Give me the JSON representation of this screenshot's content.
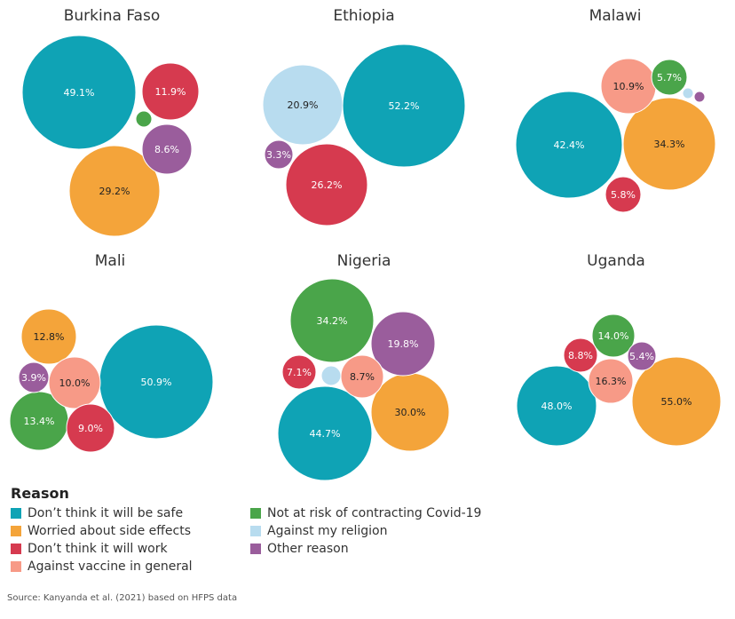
{
  "colors": {
    "safe": "#0fa3b5",
    "side": "#f4a43a",
    "work": "#d63a4f",
    "general": "#f79a87",
    "risk": "#4aa54a",
    "religion": "#b8dcef",
    "other": "#9a5d9c"
  },
  "legend": {
    "title": "Reason",
    "items": [
      {
        "key": "safe",
        "label": "Don’t think it will be safe"
      },
      {
        "key": "risk",
        "label": "Not at risk of contracting Covid-19"
      },
      {
        "key": "side",
        "label": "Worried about side effects"
      },
      {
        "key": "religion",
        "label": "Against my religion"
      },
      {
        "key": "work",
        "label": "Don’t think it will work"
      },
      {
        "key": "other",
        "label": "Other reason"
      },
      {
        "key": "general",
        "label": "Against vaccine in general"
      }
    ]
  },
  "source": "Source: Kanyanda et al. (2021) based on HFPS data",
  "chart_data": [
    {
      "type": "packed-bubble",
      "title": "Burkina Faso",
      "series": [
        {
          "key": "safe",
          "value": 49.1,
          "label": "49.1%"
        },
        {
          "key": "side",
          "value": 29.2,
          "label": "29.2%"
        },
        {
          "key": "work",
          "value": 11.9,
          "label": "11.9%"
        },
        {
          "key": "other",
          "value": 8.6,
          "label": "8.6%"
        },
        {
          "key": "risk",
          "value": 1.2,
          "label": ""
        }
      ]
    },
    {
      "type": "packed-bubble",
      "title": "Ethiopia",
      "series": [
        {
          "key": "safe",
          "value": 52.2,
          "label": "52.2%"
        },
        {
          "key": "work",
          "value": 26.2,
          "label": "26.2%"
        },
        {
          "key": "religion",
          "value": 20.9,
          "label": "20.9%"
        },
        {
          "key": "other",
          "value": 3.3,
          "label": "3.3%"
        }
      ]
    },
    {
      "type": "packed-bubble",
      "title": "Malawi",
      "series": [
        {
          "key": "safe",
          "value": 42.4,
          "label": "42.4%"
        },
        {
          "key": "side",
          "value": 34.3,
          "label": "34.3%"
        },
        {
          "key": "general",
          "value": 10.9,
          "label": "10.9%"
        },
        {
          "key": "risk",
          "value": 5.7,
          "label": "5.7%"
        },
        {
          "key": "work",
          "value": 5.8,
          "label": "5.8%"
        },
        {
          "key": "religion",
          "value": 0.5,
          "label": ""
        },
        {
          "key": "other",
          "value": 0.6,
          "label": ""
        }
      ]
    },
    {
      "type": "packed-bubble",
      "title": "Mali",
      "series": [
        {
          "key": "safe",
          "value": 50.9,
          "label": "50.9%"
        },
        {
          "key": "risk",
          "value": 13.4,
          "label": "13.4%"
        },
        {
          "key": "side",
          "value": 12.8,
          "label": "12.8%"
        },
        {
          "key": "general",
          "value": 10.0,
          "label": "10.0%"
        },
        {
          "key": "work",
          "value": 9.0,
          "label": "9.0%"
        },
        {
          "key": "other",
          "value": 3.9,
          "label": "3.9%"
        }
      ]
    },
    {
      "type": "packed-bubble",
      "title": "Nigeria",
      "series": [
        {
          "key": "safe",
          "value": 44.7,
          "label": "44.7%"
        },
        {
          "key": "risk",
          "value": 34.2,
          "label": "34.2%"
        },
        {
          "key": "side",
          "value": 30.0,
          "label": "30.0%"
        },
        {
          "key": "other",
          "value": 19.8,
          "label": "19.8%"
        },
        {
          "key": "general",
          "value": 8.7,
          "label": "8.7%"
        },
        {
          "key": "work",
          "value": 7.1,
          "label": "7.1%"
        },
        {
          "key": "religion",
          "value": 2.0,
          "label": ""
        }
      ]
    },
    {
      "type": "packed-bubble",
      "title": "Uganda",
      "series": [
        {
          "key": "side",
          "value": 55.0,
          "label": "55.0%"
        },
        {
          "key": "safe",
          "value": 48.0,
          "label": "48.0%"
        },
        {
          "key": "general",
          "value": 16.3,
          "label": "16.3%"
        },
        {
          "key": "risk",
          "value": 14.0,
          "label": "14.0%"
        },
        {
          "key": "work",
          "value": 8.8,
          "label": "8.8%"
        },
        {
          "key": "other",
          "value": 5.4,
          "label": "5.4%"
        }
      ]
    }
  ]
}
